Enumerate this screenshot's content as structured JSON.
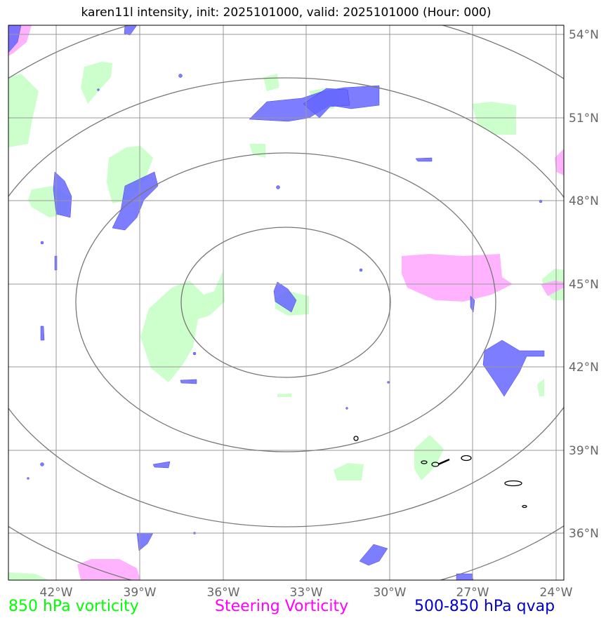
{
  "title": "karen11l intensity, init: 2025101000, valid: 2025101000 (Hour: 000)",
  "lon_labels": [
    "42°W",
    "39°W",
    "36°W",
    "33°W",
    "30°W",
    "27°W",
    "24°W"
  ],
  "lat_labels": [
    "54°N",
    "51°N",
    "48°N",
    "45°N",
    "42°N",
    "39°N",
    "36°N"
  ],
  "legend": [
    {
      "label": "850 hPa vorticity",
      "color": "#00ff00"
    },
    {
      "label": "Steering Vorticity",
      "color": "#ff00ff"
    },
    {
      "label": "500-850 hPa qvap",
      "color": "#0000cc"
    }
  ],
  "colors": {
    "vort850": "#ccffcc",
    "steering": "#ffb3ff",
    "qvap": "#6666ff",
    "grid": "#999999",
    "rings": "#777777"
  }
}
